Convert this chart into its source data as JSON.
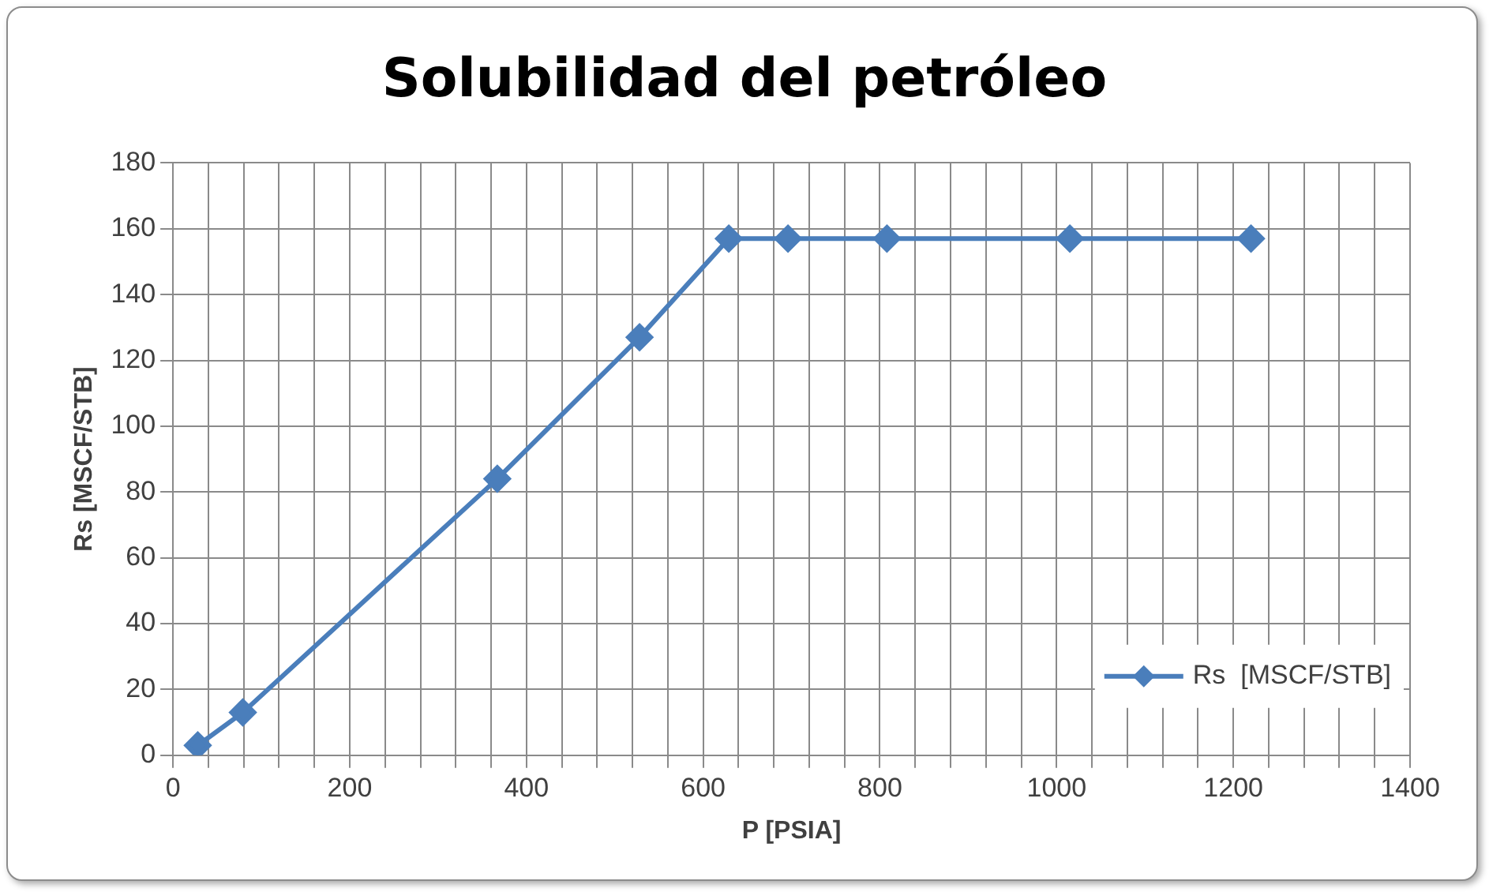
{
  "chart_data": {
    "type": "line",
    "title": "Solubilidad del petróleo",
    "xlabel": "P [PSIA]",
    "ylabel": "Rs [MSCF/STB]",
    "x": [
      28,
      79,
      367,
      528,
      629,
      696,
      808,
      1015,
      1220
    ],
    "series": [
      {
        "name": "Rs  [MSCF/STB]",
        "color": "#4a7ebb",
        "values": [
          3,
          13,
          84,
          127,
          157,
          157,
          157,
          157,
          157
        ]
      }
    ],
    "xlim": [
      0,
      1400
    ],
    "xticks": [
      0,
      {
        "value": 40,
        "label": null
      },
      {
        "value": 80,
        "label": null
      },
      {
        "value": 120,
        "label": null
      },
      {
        "value": 160,
        "label": null
      },
      200,
      {
        "value": 240,
        "label": null
      },
      {
        "value": 280,
        "label": null
      },
      {
        "value": 320,
        "label": null
      },
      {
        "value": 360,
        "label": null
      },
      400,
      {
        "value": 440,
        "label": null
      },
      {
        "value": 480,
        "label": null
      },
      {
        "value": 520,
        "label": null
      },
      {
        "value": 560,
        "label": null
      },
      600,
      {
        "value": 640,
        "label": null
      },
      {
        "value": 680,
        "label": null
      },
      {
        "value": 720,
        "label": null
      },
      {
        "value": 760,
        "label": null
      },
      800,
      {
        "value": 840,
        "label": null
      },
      {
        "value": 880,
        "label": null
      },
      {
        "value": 920,
        "label": null
      },
      {
        "value": 960,
        "label": null
      },
      1000,
      {
        "value": 1040,
        "label": null
      },
      {
        "value": 1080,
        "label": null
      },
      {
        "value": 1120,
        "label": null
      },
      {
        "value": 1160,
        "label": null
      },
      1200,
      {
        "value": 1240,
        "label": null
      },
      {
        "value": 1280,
        "label": null
      },
      {
        "value": 1320,
        "label": null
      },
      {
        "value": 1360,
        "label": null
      },
      1400
    ],
    "ylim": [
      0,
      180
    ],
    "yticks": [
      0,
      20,
      40,
      60,
      80,
      100,
      120,
      140,
      160,
      180
    ],
    "grid": true,
    "legend": "bottom right",
    "marker": "diamond",
    "line_style": "solid"
  }
}
